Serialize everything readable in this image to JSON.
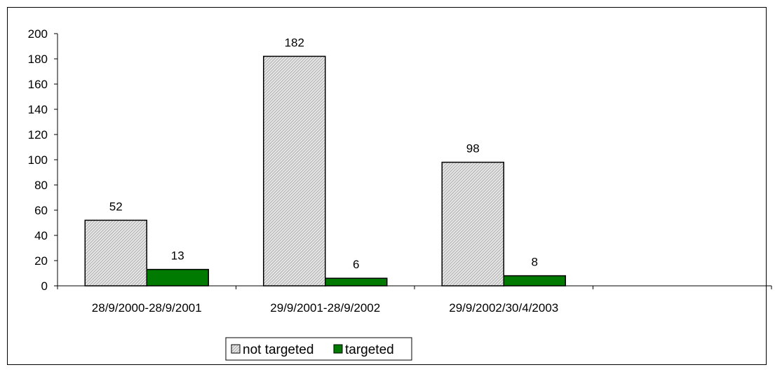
{
  "chart_data": {
    "type": "bar",
    "title": "",
    "xlabel": "",
    "ylabel": "",
    "categories": [
      "28/9/2000-28/9/2001",
      "29/9/2001-28/9/2002",
      "29/9/2002/30/4/2003",
      ""
    ],
    "series": [
      {
        "name": "not targeted",
        "values": [
          52,
          182,
          98,
          null
        ],
        "color": "#d9d9d9",
        "pattern": "diagonal-hatch"
      },
      {
        "name": "targeted",
        "values": [
          13,
          6,
          8,
          null
        ],
        "color": "#007a00"
      }
    ],
    "ylim": [
      0,
      200
    ],
    "yticks": [
      0,
      20,
      40,
      60,
      80,
      100,
      120,
      140,
      160,
      180,
      200
    ],
    "grid": false,
    "legend_position": "bottom"
  }
}
